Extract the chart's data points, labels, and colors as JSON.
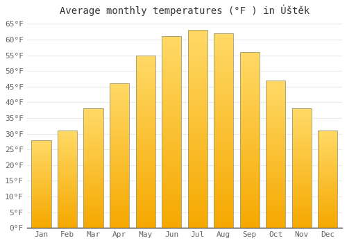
{
  "title": "Average monthly temperatures (°F ) in Úštěk",
  "months": [
    "Jan",
    "Feb",
    "Mar",
    "Apr",
    "May",
    "Jun",
    "Jul",
    "Aug",
    "Sep",
    "Oct",
    "Nov",
    "Dec"
  ],
  "values": [
    28,
    31,
    38,
    46,
    55,
    61,
    63,
    62,
    56,
    47,
    38,
    31
  ],
  "ylim": [
    0,
    65
  ],
  "yticks": [
    0,
    5,
    10,
    15,
    20,
    25,
    30,
    35,
    40,
    45,
    50,
    55,
    60,
    65
  ],
  "bar_color_bottom": "#F5A800",
  "bar_color_top": "#FFD966",
  "bar_edge_color": "#B8860B",
  "background_color": "#ffffff",
  "plot_bg_color": "#ffffff",
  "grid_color": "#e8e8ee",
  "title_fontsize": 10,
  "tick_fontsize": 8
}
